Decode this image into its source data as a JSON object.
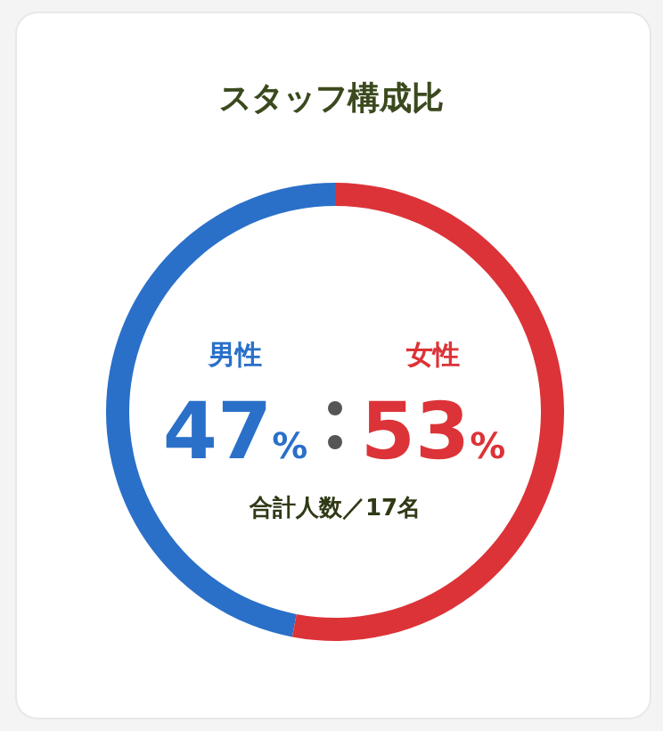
{
  "chart_data": {
    "type": "donut",
    "title": "スタッフ構成比",
    "categories": [
      "男性",
      "女性"
    ],
    "values": [
      47,
      53
    ],
    "colors": [
      "#2a70c9",
      "#dc3338"
    ],
    "value_labels": [
      "47%",
      "53%"
    ],
    "annotations": [
      "合計人数／17名"
    ]
  }
}
